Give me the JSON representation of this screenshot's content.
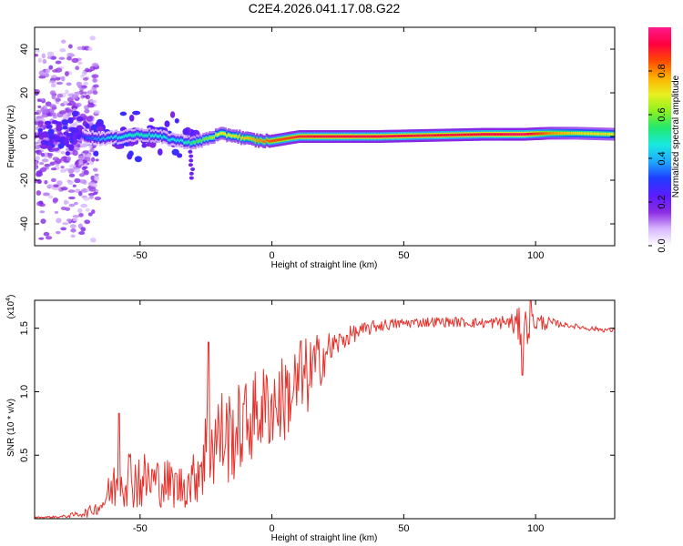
{
  "title": "C2E4.2026.041.17.08.G22",
  "chart_data": [
    {
      "type": "heatmap",
      "name": "spectrogram",
      "xlabel": "Height of straight line (km)",
      "ylabel": "Frequency (Hz)",
      "xlim": [
        -90,
        130
      ],
      "ylim": [
        -50,
        50
      ],
      "xticks": [
        -50,
        0,
        50,
        100
      ],
      "yticks": [
        -40,
        -20,
        0,
        20,
        40
      ],
      "colorbar": {
        "label": "Normalized spectral amplitude",
        "range": [
          0.0,
          1.0
        ],
        "ticks": [
          "0.0",
          "0.2",
          "0.4",
          "0.6",
          "0.8"
        ],
        "colormap": [
          "#ffffff",
          "#d8b8ff",
          "#8b2be2",
          "#5a1cff",
          "#1f3dff",
          "#1fa8ff",
          "#19e8e0",
          "#20e870",
          "#8cf020",
          "#e8f020",
          "#ffb000",
          "#ff4a00",
          "#ff0040",
          "#ff1a8c"
        ]
      },
      "ridge": [
        {
          "x": -88,
          "f": 2.0,
          "a": 0.3
        },
        {
          "x": -80,
          "f": 1.0,
          "a": 0.28
        },
        {
          "x": -72,
          "f": 0.0,
          "a": 0.3
        },
        {
          "x": -66,
          "f": -1.0,
          "a": 0.38
        },
        {
          "x": -60,
          "f": -0.5,
          "a": 0.45
        },
        {
          "x": -55,
          "f": 0.5,
          "a": 0.48
        },
        {
          "x": -50,
          "f": 1.0,
          "a": 0.5
        },
        {
          "x": -45,
          "f": 0.5,
          "a": 0.48
        },
        {
          "x": -40,
          "f": -1.0,
          "a": 0.45
        },
        {
          "x": -35,
          "f": -2.0,
          "a": 0.45
        },
        {
          "x": -30,
          "f": -3.0,
          "a": 0.55
        },
        {
          "x": -25,
          "f": -1.0,
          "a": 0.6
        },
        {
          "x": -20,
          "f": 1.0,
          "a": 0.7
        },
        {
          "x": -15,
          "f": 0.5,
          "a": 0.7
        },
        {
          "x": -10,
          "f": -1.0,
          "a": 0.75
        },
        {
          "x": -5,
          "f": -2.0,
          "a": 0.8
        },
        {
          "x": 0,
          "f": -2.0,
          "a": 0.85
        },
        {
          "x": 5,
          "f": -1.0,
          "a": 0.85
        },
        {
          "x": 10,
          "f": 0.0,
          "a": 0.9
        },
        {
          "x": 20,
          "f": 0.0,
          "a": 0.92
        },
        {
          "x": 40,
          "f": 0.0,
          "a": 0.92
        },
        {
          "x": 60,
          "f": 0.5,
          "a": 0.9
        },
        {
          "x": 80,
          "f": 1.0,
          "a": 0.92
        },
        {
          "x": 95,
          "f": 1.0,
          "a": 0.95
        },
        {
          "x": 105,
          "f": 1.5,
          "a": 0.8
        },
        {
          "x": 115,
          "f": 1.5,
          "a": 0.72
        },
        {
          "x": 130,
          "f": 1.0,
          "a": 0.7
        }
      ],
      "scatter_region": {
        "x_from": -90,
        "x_to": -66,
        "f_spread": 50
      }
    },
    {
      "type": "line",
      "name": "snr",
      "xlabel": "Height of straight line (km)",
      "ylabel": "SNR (10 * v/v)",
      "y_multiplier": "(x10",
      "y_multiplier_exp": "4",
      "xlim": [
        -90,
        130
      ],
      "ylim": [
        0.0,
        1.72
      ],
      "xticks": [
        -50,
        0,
        50,
        100
      ],
      "yticks": [
        0.5,
        1.0,
        1.5
      ],
      "ytick_labels": [
        "0.5",
        "1.0",
        "1.5"
      ],
      "color": "#e8302a",
      "envelope": [
        {
          "x": -90,
          "mean": 0.01,
          "amp": 0.005
        },
        {
          "x": -80,
          "mean": 0.015,
          "amp": 0.01
        },
        {
          "x": -75,
          "mean": 0.03,
          "amp": 0.02
        },
        {
          "x": -70,
          "mean": 0.05,
          "amp": 0.04
        },
        {
          "x": -65,
          "mean": 0.1,
          "amp": 0.06
        },
        {
          "x": -60,
          "mean": 0.25,
          "amp": 0.2
        },
        {
          "x": -55,
          "mean": 0.35,
          "amp": 0.25
        },
        {
          "x": -50,
          "mean": 0.3,
          "amp": 0.25
        },
        {
          "x": -45,
          "mean": 0.3,
          "amp": 0.2
        },
        {
          "x": -40,
          "mean": 0.28,
          "amp": 0.2
        },
        {
          "x": -35,
          "mean": 0.25,
          "amp": 0.18
        },
        {
          "x": -30,
          "mean": 0.3,
          "amp": 0.2
        },
        {
          "x": -25,
          "mean": 0.55,
          "amp": 0.4
        },
        {
          "x": -20,
          "mean": 0.65,
          "amp": 0.4
        },
        {
          "x": -15,
          "mean": 0.65,
          "amp": 0.38
        },
        {
          "x": -10,
          "mean": 0.75,
          "amp": 0.35
        },
        {
          "x": -5,
          "mean": 0.85,
          "amp": 0.35
        },
        {
          "x": 0,
          "mean": 0.9,
          "amp": 0.35
        },
        {
          "x": 5,
          "mean": 0.95,
          "amp": 0.35
        },
        {
          "x": 10,
          "mean": 1.05,
          "amp": 0.35
        },
        {
          "x": 15,
          "mean": 1.15,
          "amp": 0.3
        },
        {
          "x": 20,
          "mean": 1.3,
          "amp": 0.18
        },
        {
          "x": 25,
          "mean": 1.38,
          "amp": 0.1
        },
        {
          "x": 30,
          "mean": 1.45,
          "amp": 0.07
        },
        {
          "x": 40,
          "mean": 1.52,
          "amp": 0.05
        },
        {
          "x": 50,
          "mean": 1.54,
          "amp": 0.04
        },
        {
          "x": 60,
          "mean": 1.55,
          "amp": 0.04
        },
        {
          "x": 70,
          "mean": 1.55,
          "amp": 0.04
        },
        {
          "x": 80,
          "mean": 1.54,
          "amp": 0.04
        },
        {
          "x": 90,
          "mean": 1.55,
          "amp": 0.06
        },
        {
          "x": 95,
          "mean": 1.5,
          "amp": 0.18
        },
        {
          "x": 100,
          "mean": 1.55,
          "amp": 0.08
        },
        {
          "x": 110,
          "mean": 1.53,
          "amp": 0.02
        },
        {
          "x": 120,
          "mean": 1.5,
          "amp": 0.02
        },
        {
          "x": 130,
          "mean": 1.48,
          "amp": 0.02
        }
      ],
      "spikes": [
        {
          "x": -58,
          "y": 0.83
        },
        {
          "x": -24,
          "y": 1.39
        },
        {
          "x": 11,
          "y": 1.4
        },
        {
          "x": 95,
          "y": 1.13
        },
        {
          "x": 98,
          "y": 1.72
        }
      ]
    }
  ]
}
